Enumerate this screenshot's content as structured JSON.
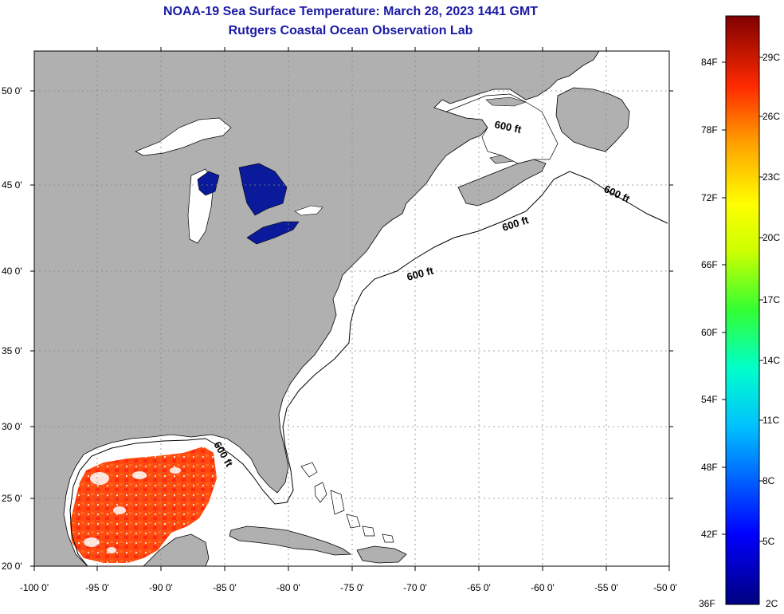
{
  "title_line1": "NOAA-19 Sea Surface Temperature:  March 28, 2023 1441 GMT",
  "title_line2": "Rutgers Coastal Ocean Observation Lab",
  "lat_labels": [
    "50 0'",
    "45 0'",
    "40 0'",
    "35 0'",
    "30 0'",
    "25 0'",
    "20 0'"
  ],
  "lon_labels": [
    "-100 0'",
    "-95 0'",
    "-90 0'",
    "-85 0'",
    "-80 0'",
    "-75 0'",
    "-70 0'",
    "-65 0'",
    "-60 0'",
    "-55 0'",
    "-50 0'"
  ],
  "contour_label": "600 ft",
  "colorbar": {
    "fahrenheit_labels": [
      "84F",
      "78F",
      "72F",
      "66F",
      "60F",
      "54F",
      "48F",
      "42F",
      "36F"
    ],
    "celsius_labels": [
      "29C",
      "26C",
      "23C",
      "20C",
      "17C",
      "14C",
      "11C",
      "8C",
      "5C",
      "2C"
    ]
  },
  "colors": {
    "land": "#b0b0b0",
    "water": "#ffffff",
    "lake_sst": "#0a1a9a",
    "gulf_sst": "#ff4a10",
    "title": "#1a1aa6"
  }
}
